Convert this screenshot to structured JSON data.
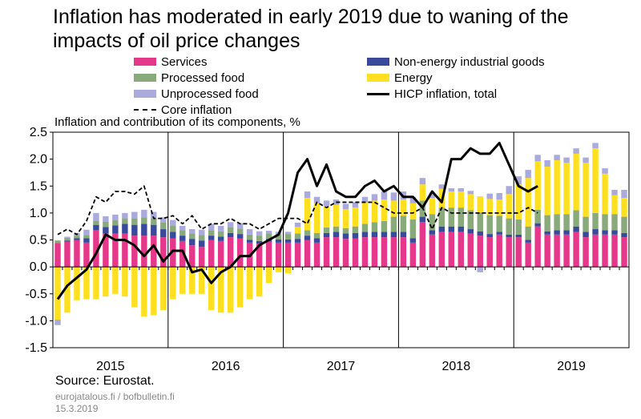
{
  "title": "Inflation has moderated in early 2019 due to waning of the impacts of oil price changes",
  "subtitle": "Inflation and contribution of its components, %",
  "source": "Source: Eurostat.",
  "footer_site": "eurojatalous.fi / bofbulletin.fi",
  "footer_date": "15.3.2019",
  "legend": [
    {
      "label": "Services",
      "color": "#e6388a",
      "type": "box"
    },
    {
      "label": "Non-energy industrial goods",
      "color": "#3a4a9a",
      "type": "box"
    },
    {
      "label": "Processed food",
      "color": "#8aaa7c",
      "type": "box"
    },
    {
      "label": "Energy",
      "color": "#ffe020",
      "type": "box"
    },
    {
      "label": "Unprocessed food",
      "color": "#aaaadc",
      "type": "box"
    },
    {
      "label": "HICP inflation, total",
      "color": "#000000",
      "type": "solid"
    },
    {
      "label": "Core inflation",
      "color": "#000000",
      "type": "dashed"
    }
  ],
  "chart_data": {
    "type": "bar",
    "stacked": true,
    "ylim": [
      -1.5,
      2.5
    ],
    "yticks": [
      "2.5",
      "2.0",
      "1.5",
      "1.0",
      "0.5",
      "0.0",
      "-0.5",
      "-1.0",
      "-1.5"
    ],
    "xticks": [
      "2015",
      "2016",
      "2017",
      "2018",
      "2019"
    ],
    "x_start": "2015-01",
    "x_end": "2019-12",
    "grid": false,
    "series": [
      {
        "name": "Services",
        "color": "#e6388a",
        "values": [
          0.44,
          0.47,
          0.5,
          0.45,
          0.68,
          0.62,
          0.62,
          0.62,
          0.58,
          0.58,
          0.58,
          0.55,
          0.53,
          0.48,
          0.4,
          0.37,
          0.5,
          0.48,
          0.55,
          0.53,
          0.45,
          0.43,
          0.47,
          0.45,
          0.45,
          0.45,
          0.5,
          0.45,
          0.55,
          0.55,
          0.52,
          0.53,
          0.55,
          0.55,
          0.55,
          0.55,
          0.55,
          0.45,
          0.83,
          0.6,
          0.65,
          0.65,
          0.65,
          0.62,
          0.58,
          0.55,
          0.6,
          0.55,
          0.55,
          0.45,
          0.75,
          0.6,
          0.6,
          0.6,
          0.65,
          0.55,
          0.6,
          0.6,
          0.6,
          0.55
        ]
      },
      {
        "name": "Non-energy industrial goods",
        "color": "#3a4a9a",
        "values": [
          0,
          0.02,
          0.03,
          0.08,
          0.1,
          0.12,
          0.15,
          0.18,
          0.2,
          0.22,
          0.2,
          0.15,
          0.12,
          0.1,
          0.12,
          0.12,
          0.08,
          0.08,
          0.08,
          0.08,
          0.05,
          0.05,
          0.05,
          0.06,
          0.06,
          0.07,
          0.08,
          0.08,
          0.08,
          0.1,
          0.1,
          0.1,
          0.1,
          0.1,
          0.1,
          0.1,
          0.1,
          0.08,
          0.1,
          0.08,
          0.1,
          0.1,
          0.1,
          0.08,
          0.08,
          0.06,
          0.05,
          0.05,
          0.05,
          0.05,
          0.06,
          0.06,
          0.08,
          0.08,
          0.1,
          0.1,
          0.1,
          0.08,
          0.08,
          0.08
        ]
      },
      {
        "name": "Processed food",
        "color": "#8aaa7c",
        "values": [
          0.05,
          0.05,
          0.05,
          0.06,
          0.08,
          0.1,
          0.1,
          0.1,
          0.12,
          0.12,
          0.12,
          0.12,
          0.12,
          0.1,
          0.1,
          0.1,
          0.1,
          0.1,
          0.1,
          0.1,
          0.1,
          0.1,
          0.1,
          0.1,
          0.1,
          0.1,
          0.1,
          0.1,
          0.1,
          0.1,
          0.1,
          0.12,
          0.15,
          0.18,
          0.2,
          0.28,
          0.3,
          0.35,
          0.3,
          0.3,
          0.35,
          0.35,
          0.35,
          0.35,
          0.35,
          0.35,
          0.3,
          0.3,
          0.28,
          0.25,
          0.25,
          0.3,
          0.3,
          0.3,
          0.3,
          0.28,
          0.3,
          0.3,
          0.3,
          0.3
        ]
      },
      {
        "name": "Energy",
        "color": "#ffe020",
        "values": [
          -0.98,
          -0.85,
          -0.62,
          -0.6,
          -0.6,
          -0.55,
          -0.5,
          -0.55,
          -0.75,
          -0.92,
          -0.9,
          -0.8,
          -0.6,
          -0.5,
          -0.5,
          -0.5,
          -0.8,
          -0.85,
          -0.85,
          -0.75,
          -0.6,
          -0.55,
          -0.3,
          -0.1,
          -0.12,
          0.12,
          0.6,
          0.55,
          0.4,
          0.4,
          0.35,
          0.35,
          0.4,
          0.4,
          0.4,
          0.3,
          0.3,
          0.3,
          0.3,
          0.3,
          0.35,
          0.3,
          0.3,
          0.3,
          0.3,
          0.3,
          0.3,
          0.45,
          0.65,
          0.9,
          0.9,
          0.9,
          1.0,
          0.95,
          1.05,
          1.0,
          1.2,
          0.75,
          0.35,
          0.35
        ]
      },
      {
        "name": "Unprocessed food",
        "color": "#aaaadc",
        "values": [
          -0.1,
          0.02,
          0.05,
          0.1,
          0.14,
          0.1,
          0.1,
          0.1,
          0.12,
          0.14,
          0.12,
          0.1,
          0.1,
          0.08,
          0.08,
          0.1,
          0.12,
          0.1,
          0.1,
          0.1,
          0.1,
          0.08,
          0.05,
          0.04,
          0.04,
          0.08,
          0.12,
          0.12,
          0.1,
          0.1,
          0.1,
          0.1,
          0.1,
          0.12,
          0.15,
          0.15,
          0.15,
          0.12,
          0.12,
          0.1,
          0.08,
          0.06,
          0.06,
          0.06,
          -0.1,
          0.1,
          0.12,
          0.15,
          0.15,
          0.15,
          0.12,
          0.12,
          0.1,
          0.1,
          0.1,
          0.1,
          0.1,
          0.1,
          0.1,
          0.15
        ]
      }
    ],
    "lines": [
      {
        "name": "HICP inflation, total",
        "style": "solid",
        "values": [
          -0.6,
          -0.35,
          -0.2,
          -0.05,
          0.25,
          0.6,
          0.5,
          0.5,
          0.4,
          0.2,
          0.4,
          0.1,
          0.3,
          0.3,
          -0.1,
          -0.05,
          -0.3,
          -0.1,
          0.0,
          0.2,
          0.2,
          0.4,
          0.5,
          0.6,
          1.0,
          1.75,
          2.0,
          1.5,
          1.9,
          1.4,
          1.3,
          1.3,
          1.5,
          1.6,
          1.4,
          1.5,
          1.3,
          1.3,
          1.1,
          1.4,
          1.2,
          2.0,
          2.0,
          2.2,
          2.1,
          2.1,
          2.3,
          1.9,
          1.5,
          1.4,
          1.5
        ]
      },
      {
        "name": "Core inflation",
        "style": "dashed",
        "values": [
          0.6,
          0.7,
          0.6,
          0.85,
          1.3,
          1.2,
          1.4,
          1.4,
          1.35,
          1.5,
          0.9,
          0.9,
          0.95,
          0.8,
          0.95,
          0.7,
          0.8,
          0.8,
          0.9,
          0.8,
          0.8,
          0.7,
          0.8,
          0.9,
          0.9,
          0.9,
          0.8,
          1.2,
          1.1,
          1.2,
          1.2,
          1.2,
          1.2,
          1.2,
          1.1,
          1.0,
          1.0,
          1.0,
          1.1,
          0.7,
          1.1,
          1.0,
          1.0,
          1.0,
          1.0,
          1.0,
          1.0,
          1.0,
          1.0,
          1.1,
          1.0
        ]
      }
    ]
  }
}
